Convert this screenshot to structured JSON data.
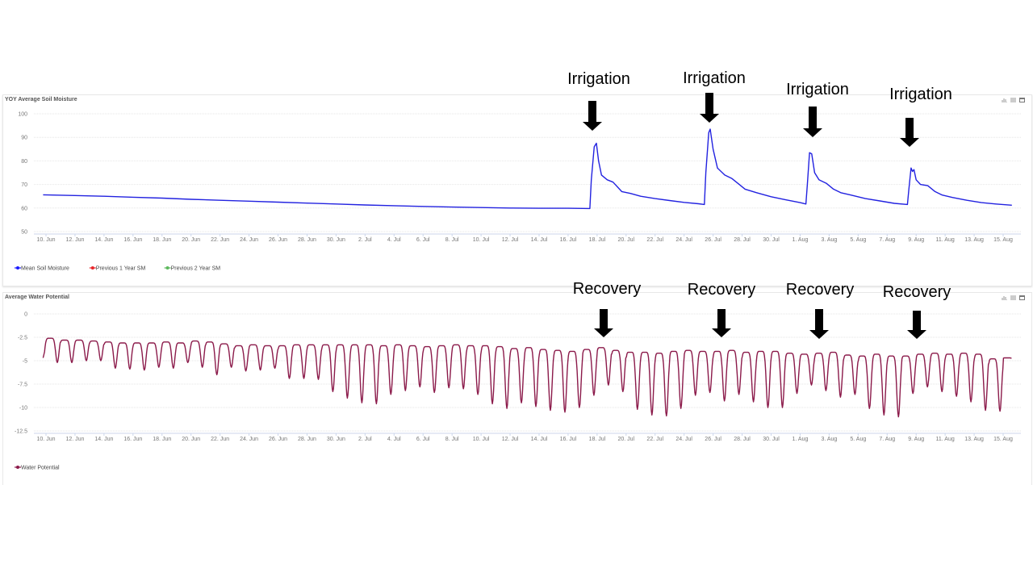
{
  "chart_data": [
    {
      "type": "line",
      "title": "YOY Average Soil Moisture",
      "xlabel": "",
      "ylabel": "",
      "ylim": [
        50,
        100
      ],
      "yticks": [
        "100",
        "90",
        "80",
        "70",
        "60",
        "50"
      ],
      "ytick_values": [
        100,
        90,
        80,
        70,
        60,
        50
      ],
      "x_unit": "days since 10 Jun",
      "grid": true,
      "legend_position": "bottom-left",
      "legend": [
        "Mean Soil Moisture",
        "Previous 1 Year SM",
        "Previous 2 Year SM"
      ],
      "legend_colors": [
        "#1a1aff",
        "#e8262b",
        "#5cb85c"
      ],
      "series": [
        {
          "name": "Mean Soil Moisture",
          "color": "#2222e0",
          "points": [
            [
              -0.2,
              65.6
            ],
            [
              2,
              65.3
            ],
            [
              4,
              65.0
            ],
            [
              6,
              64.6
            ],
            [
              8,
              64.2
            ],
            [
              10,
              63.7
            ],
            [
              12,
              63.3
            ],
            [
              14,
              62.9
            ],
            [
              16,
              62.5
            ],
            [
              18,
              62.1
            ],
            [
              20,
              61.7
            ],
            [
              22,
              61.3
            ],
            [
              24,
              61.0
            ],
            [
              26,
              60.7
            ],
            [
              28,
              60.4
            ],
            [
              30,
              60.2
            ],
            [
              32,
              60.0
            ],
            [
              34,
              59.9
            ],
            [
              36,
              59.9
            ],
            [
              37.5,
              59.8
            ],
            [
              37.6,
              72
            ],
            [
              37.8,
              86
            ],
            [
              37.95,
              87.5
            ],
            [
              38.1,
              80
            ],
            [
              38.3,
              74
            ],
            [
              38.7,
              72
            ],
            [
              39.1,
              71
            ],
            [
              39.4,
              69
            ],
            [
              39.7,
              67
            ],
            [
              40.3,
              66.2
            ],
            [
              41,
              65
            ],
            [
              42,
              64
            ],
            [
              43,
              63.2
            ],
            [
              44,
              62.4
            ],
            [
              45,
              61.8
            ],
            [
              45.4,
              61.5
            ],
            [
              45.5,
              75
            ],
            [
              45.7,
              92
            ],
            [
              45.8,
              93.5
            ],
            [
              46,
              85
            ],
            [
              46.3,
              77
            ],
            [
              46.8,
              74
            ],
            [
              47.3,
              72.5
            ],
            [
              47.8,
              70
            ],
            [
              48.2,
              68
            ],
            [
              49,
              66.5
            ],
            [
              50,
              64.8
            ],
            [
              51,
              63.5
            ],
            [
              52,
              62.3
            ],
            [
              52.4,
              61.7
            ],
            [
              52.5,
              70
            ],
            [
              52.65,
              83.5
            ],
            [
              52.8,
              83
            ],
            [
              53,
              75
            ],
            [
              53.3,
              72
            ],
            [
              53.8,
              70.5
            ],
            [
              54.3,
              68
            ],
            [
              54.8,
              66.5
            ],
            [
              55.5,
              65.5
            ],
            [
              56.5,
              64
            ],
            [
              57.5,
              63
            ],
            [
              58.5,
              62
            ],
            [
              59.4,
              61.5
            ],
            [
              59.5,
              68
            ],
            [
              59.65,
              77
            ],
            [
              59.75,
              75.5
            ],
            [
              59.85,
              76.3
            ],
            [
              60,
              72
            ],
            [
              60.3,
              70
            ],
            [
              60.8,
              69.5
            ],
            [
              61.3,
              67
            ],
            [
              61.8,
              65.5
            ],
            [
              62.5,
              64.5
            ],
            [
              63.5,
              63.3
            ],
            [
              64.5,
              62.3
            ],
            [
              65.5,
              61.7
            ],
            [
              66.6,
              61.2
            ]
          ]
        }
      ]
    },
    {
      "type": "line",
      "title": "Average Water Potential",
      "xlabel": "",
      "ylabel": "",
      "ylim": [
        -12.5,
        0
      ],
      "yticks": [
        "0",
        "-2.5",
        "-5",
        "-7.5",
        "-10",
        "-12.5"
      ],
      "ytick_values": [
        0,
        -2.5,
        -5,
        -7.5,
        -10,
        -12.5
      ],
      "x_unit": "days since 10 Jun",
      "grid": true,
      "legend_position": "bottom-left",
      "legend": [
        "Water Potential"
      ],
      "legend_colors": [
        "#8b1a4a"
      ],
      "series": [
        {
          "name": "Water Potential",
          "color": "#8b1a4a",
          "start": [
            -0.2,
            -4.7
          ],
          "daily_max": [
            -2.6,
            -2.8,
            -2.8,
            -2.9,
            -3.0,
            -3.1,
            -3.1,
            -3.1,
            -3.0,
            -3.1,
            -2.9,
            -3.0,
            -3.2,
            -3.4,
            -3.3,
            -3.4,
            -3.4,
            -3.3,
            -3.3,
            -3.3,
            -3.3,
            -3.3,
            -3.3,
            -3.4,
            -3.3,
            -3.4,
            -3.5,
            -3.4,
            -3.3,
            -3.4,
            -3.4,
            -3.5,
            -3.7,
            -3.6,
            -3.8,
            -3.9,
            -4.0,
            -3.8,
            -3.6,
            -3.9,
            -4.1,
            -4.1,
            -4.2,
            -4.0,
            -3.9,
            -4.0,
            -4.0,
            -3.9,
            -4.1,
            -4.0,
            -4.0,
            -4.2,
            -4.3,
            -4.2,
            -4.1,
            -4.4,
            -4.5,
            -4.3,
            -4.5,
            -4.5,
            -4.3,
            -4.2,
            -4.3,
            -4.2,
            -4.3,
            -4.8,
            -4.7
          ],
          "daily_min": [
            -5.2,
            -5.2,
            -5.0,
            -5.0,
            -5.8,
            -5.9,
            -6.0,
            -5.7,
            -5.8,
            -5.2,
            -5.7,
            -6.5,
            -5.7,
            -6.1,
            -6.0,
            -5.8,
            -6.9,
            -6.9,
            -7.0,
            -8.3,
            -9.0,
            -9.5,
            -9.6,
            -8.6,
            -8.2,
            -7.8,
            -8.4,
            -7.9,
            -8.0,
            -8.6,
            -9.6,
            -10.1,
            -9.5,
            -9.9,
            -10.3,
            -10.5,
            -10.0,
            -8.7,
            -7.6,
            -8.3,
            -10.2,
            -10.8,
            -10.9,
            -10.1,
            -8.7,
            -8.4,
            -9.3,
            -8.6,
            -9.4,
            -10.0,
            -10.0,
            -8.5,
            -7.6,
            -8.2,
            -8.9,
            -8.6,
            -10.1,
            -10.8,
            -11.0,
            -8.5,
            -7.8,
            -8.3,
            -8.8,
            -9.4,
            -10.3,
            -10.4,
            -5.0
          ]
        }
      ]
    }
  ],
  "xticks": [
    "10. Jun",
    "12. Jun",
    "14. Jun",
    "16. Jun",
    "18. Jun",
    "20. Jun",
    "22. Jun",
    "24. Jun",
    "26. Jun",
    "28. Jun",
    "30. Jun",
    "2. Jul",
    "4. Jul",
    "6. Jul",
    "8. Jul",
    "10. Jul",
    "12. Jul",
    "14. Jul",
    "16. Jul",
    "18. Jul",
    "20. Jul",
    "22. Jul",
    "24. Jul",
    "26. Jul",
    "28. Jul",
    "30. Jul",
    "1. Aug",
    "3. Aug",
    "5. Aug",
    "7. Aug",
    "9. Aug",
    "11. Aug",
    "13. Aug",
    "15. Aug"
  ],
  "annotations": {
    "irrigation": [
      {
        "label": "Irrigation",
        "day": 37.95
      },
      {
        "label": "Irrigation",
        "day": 45.8
      },
      {
        "label": "Irrigation",
        "day": 52.65
      },
      {
        "label": "Irrigation",
        "day": 59.7
      }
    ],
    "recovery": [
      {
        "label": "Recovery",
        "day": 38.5
      },
      {
        "label": "Recovery",
        "day": 46.6
      },
      {
        "label": "Recovery",
        "day": 53.3
      },
      {
        "label": "Recovery",
        "day": 60.0
      }
    ]
  },
  "toolbar_icons": [
    "chart-icon",
    "list-icon",
    "fullscreen-icon"
  ]
}
